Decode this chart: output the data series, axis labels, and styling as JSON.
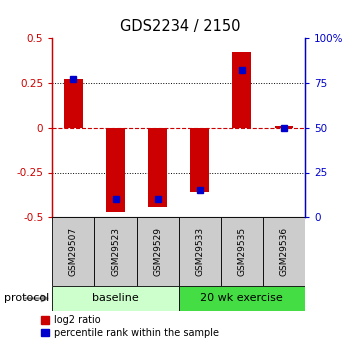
{
  "title": "GDS2234 / 2150",
  "samples": [
    "GSM29507",
    "GSM29523",
    "GSM29529",
    "GSM29533",
    "GSM29535",
    "GSM29536"
  ],
  "log2_ratio": [
    0.27,
    -0.47,
    -0.44,
    -0.36,
    0.42,
    0.01
  ],
  "percentile_rank": [
    77,
    10,
    10,
    15,
    82,
    50
  ],
  "ylim": [
    -0.5,
    0.5
  ],
  "yticks_left": [
    -0.5,
    -0.25,
    0,
    0.25,
    0.5
  ],
  "yticks_right": [
    0,
    25,
    50,
    75,
    100
  ],
  "ytick_labels_left": [
    "-0.5",
    "-0.25",
    "0",
    "0.25",
    "0.5"
  ],
  "ytick_labels_right": [
    "0",
    "25",
    "50",
    "75",
    "100%"
  ],
  "left_axis_color": "#cc0000",
  "right_axis_color": "#0000cc",
  "bar_color": "#cc0000",
  "dot_color": "#0000cc",
  "protocol_groups": [
    {
      "label": "baseline",
      "start": 0,
      "end": 3,
      "color": "#ccffcc"
    },
    {
      "label": "20 wk exercise",
      "start": 3,
      "end": 6,
      "color": "#44dd44"
    }
  ],
  "protocol_label": "protocol",
  "legend_items": [
    {
      "label": "log2 ratio",
      "color": "#cc0000"
    },
    {
      "label": "percentile rank within the sample",
      "color": "#0000cc"
    }
  ],
  "bar_width": 0.45,
  "background_color": "#ffffff",
  "xlabel_box_color": "#cccccc",
  "zero_line_color": "#cc0000",
  "dotted_line_color": "#000000"
}
